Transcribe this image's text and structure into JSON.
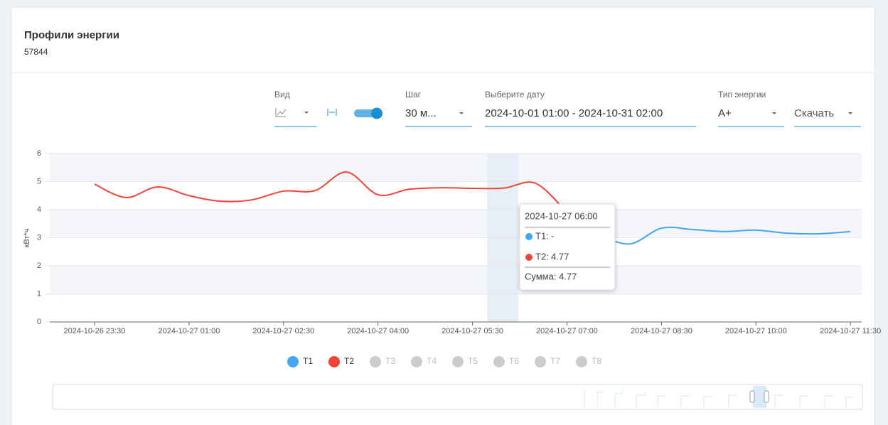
{
  "header": {
    "title": "Профили энергии",
    "subtitle": "57844"
  },
  "controls": {
    "view_label": "Вид",
    "step_label": "Шаг",
    "step_value": "30 м...",
    "date_label": "Выберите дату",
    "date_value": "2024-10-01 01:00 - 2024-10-31 02:00",
    "energy_label": "Тип энергии",
    "energy_value": "A+",
    "download": "Скачать"
  },
  "chart_data": {
    "type": "line",
    "y_label": "кВт*ч",
    "categories": [
      "2024-10-26 23:30",
      null,
      null,
      "2024-10-27 01:00",
      null,
      null,
      "2024-10-27 02:30",
      null,
      null,
      "2024-10-27 04:00",
      null,
      null,
      "2024-10-27 05:30",
      null,
      null,
      "2024-10-27 07:00",
      null,
      null,
      "2024-10-27 08:30",
      null,
      null,
      "2024-10-27 10:00",
      null,
      null,
      "2024-10-27 11:30"
    ],
    "series": [
      {
        "name": "T1",
        "color": "#42a5f5",
        "values": [
          null,
          null,
          null,
          null,
          null,
          null,
          null,
          null,
          null,
          null,
          null,
          null,
          null,
          null,
          null,
          null,
          3.1,
          2.78,
          3.34,
          3.29,
          3.22,
          3.27,
          3.16,
          3.14,
          3.22
        ]
      },
      {
        "name": "T2",
        "color": "#f44336",
        "values": [
          4.91,
          4.43,
          4.81,
          4.5,
          4.3,
          4.35,
          4.66,
          4.68,
          5.34,
          4.53,
          4.73,
          4.78,
          4.76,
          4.77,
          4.94,
          3.9,
          null,
          null,
          null,
          null,
          null,
          null,
          null,
          null,
          null
        ]
      }
    ],
    "inactive_series": [
      "T3",
      "T4",
      "T5",
      "T6",
      "T7",
      "T8"
    ],
    "ylim": [
      0,
      6
    ],
    "yticks": [
      0,
      1,
      2,
      3,
      4,
      5,
      6
    ],
    "grid": true,
    "tooltip": {
      "title": "2024-10-27 06:00",
      "rows": [
        {
          "name": "T1:",
          "value": "-"
        },
        {
          "name": "T2:",
          "value": "4.77"
        }
      ],
      "sum": "Сумма: 4.77"
    }
  }
}
